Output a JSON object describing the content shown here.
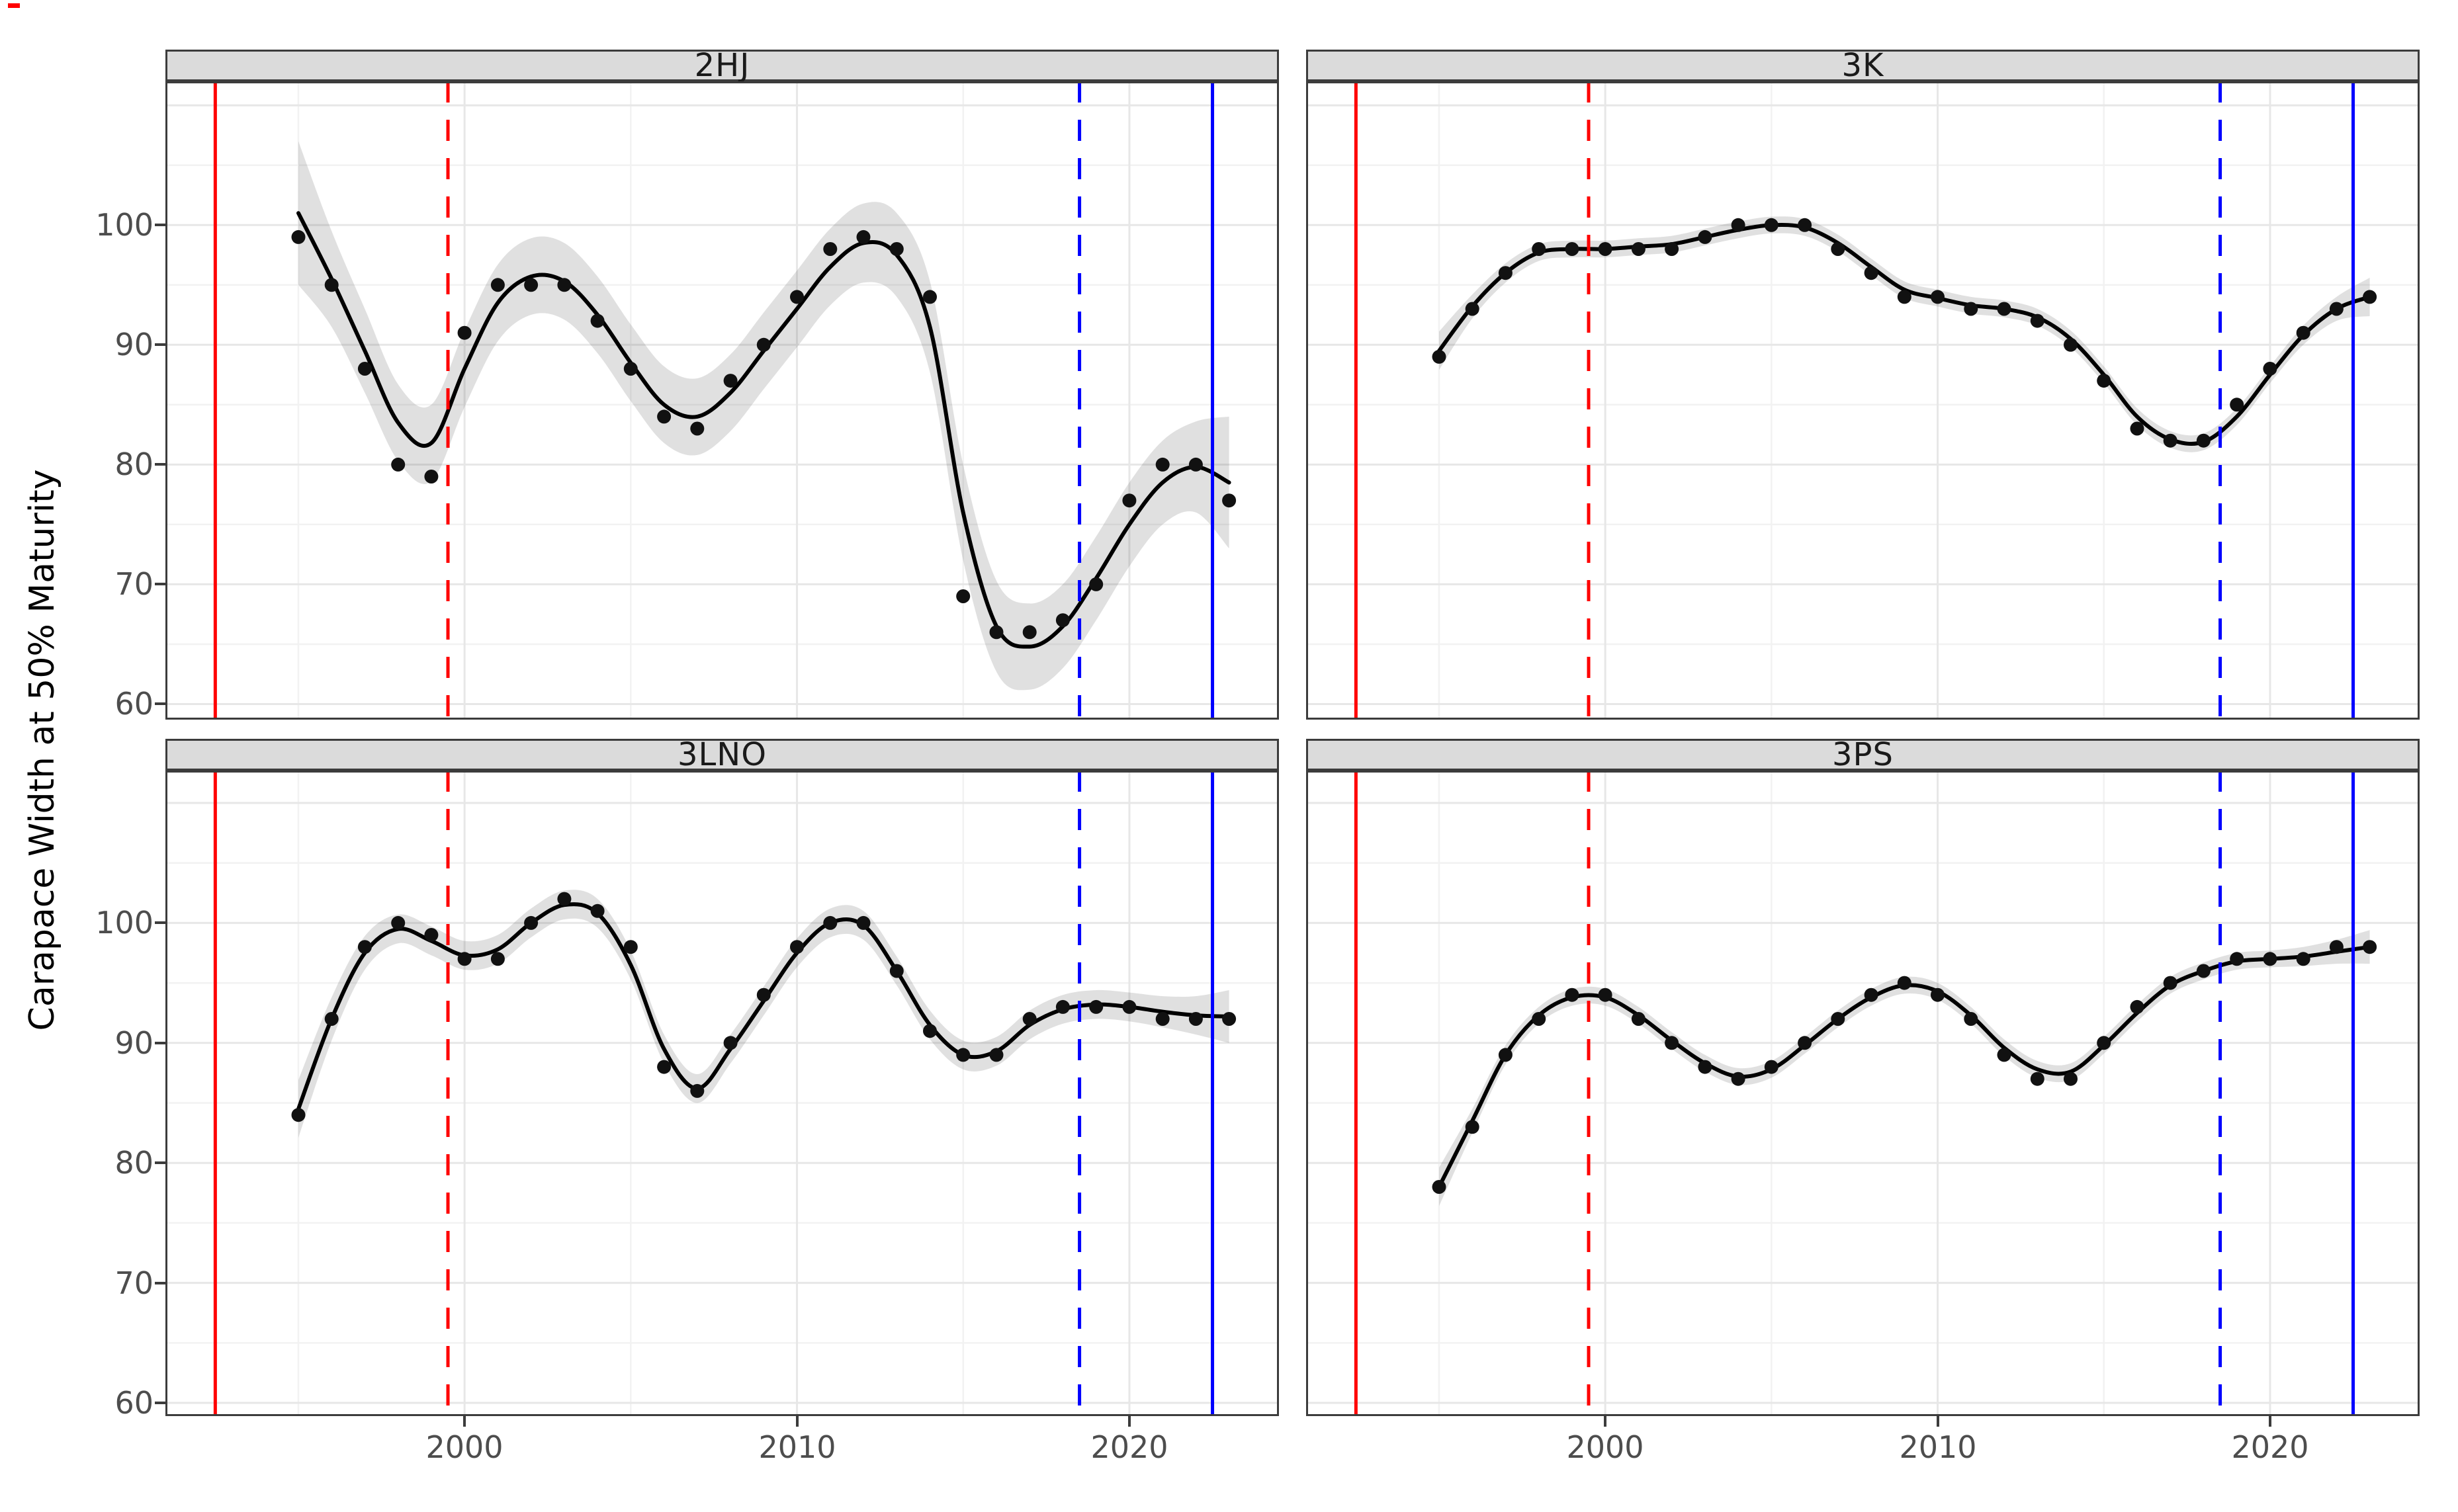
{
  "y_axis": {
    "title": "Carapace Width at 50% Maturity",
    "tick_labels": [
      "100",
      "90",
      "80",
      "70",
      "60"
    ],
    "tick_values": [
      100,
      90,
      80,
      70,
      60
    ]
  },
  "x_axis": {
    "tick_labels": [
      "2000",
      "2010",
      "2020"
    ],
    "tick_values": [
      2000,
      2010,
      2020
    ]
  },
  "reference_lines": [
    {
      "name": "red-solid-line",
      "x": 1992.5,
      "color": "#ff0000",
      "style": "solid"
    },
    {
      "name": "red-dashed-line",
      "x": 1999.5,
      "color": "#ff0000",
      "style": "dashed"
    },
    {
      "name": "blue-dashed-line",
      "x": 2018.5,
      "color": "#0000ff",
      "style": "dashed"
    },
    {
      "name": "blue-solid-line",
      "x": 2022.5,
      "color": "#0000ff",
      "style": "solid"
    }
  ],
  "style": {
    "point_color": "#111111",
    "line_color": "#000000",
    "ribbon_color": "rgba(60,60,60,0.16)",
    "grid_major_color": "#e7e7e7",
    "grid_minor_color": "#f2f2f2",
    "panel_border_color": "#3c3c3c",
    "strip_background": "#dbdbdb",
    "tick_text_color": "#4d4d4d"
  },
  "chart_data": {
    "type": "scatter",
    "title": "",
    "xlabel": "",
    "ylabel": "Carapace Width at 50% Maturity",
    "xlim": [
      1991,
      2024.5
    ],
    "ylim_row_top": [
      58.7,
      112.0
    ],
    "ylim_row_bottom": [
      58.9,
      112.7
    ],
    "grid": "on",
    "legend": "none",
    "x": [
      1995,
      1996,
      1997,
      1998,
      1999,
      2000,
      2001,
      2002,
      2003,
      2004,
      2005,
      2006,
      2007,
      2008,
      2009,
      2010,
      2011,
      2012,
      2013,
      2014,
      2015,
      2016,
      2017,
      2018,
      2019,
      2020,
      2021,
      2022,
      2023
    ],
    "panels": [
      {
        "label": "2HJ",
        "values": [
          99,
          95,
          88,
          80,
          79,
          91,
          95,
          95,
          95,
          92,
          88,
          84,
          83,
          87,
          90,
          94,
          98,
          99,
          98,
          94,
          69,
          66,
          66,
          67,
          70,
          77,
          80,
          80,
          77
        ],
        "smooth": [
          101,
          95.5,
          89.5,
          83.5,
          81.8,
          88,
          93.5,
          95.7,
          95.3,
          92.5,
          88.5,
          85,
          84,
          86,
          89.5,
          93,
          96.5,
          98.5,
          97.5,
          91.5,
          76,
          66.5,
          64.8,
          66.5,
          70.5,
          75,
          78.5,
          79.8,
          78.5
        ],
        "ci_halfwidth": [
          6,
          4,
          3.5,
          3.2,
          3.2,
          3.2,
          3.2,
          3.2,
          3.2,
          3.2,
          3.2,
          3.2,
          3.2,
          3.2,
          3.2,
          3.2,
          3.2,
          3.3,
          3.5,
          3.8,
          4,
          3.8,
          3.6,
          3.5,
          3.5,
          3.5,
          3.5,
          3.8,
          5.5
        ]
      },
      {
        "label": "3K",
        "values": [
          89,
          93,
          96,
          98,
          98,
          98,
          98,
          98,
          99,
          100,
          100,
          100,
          98,
          96,
          94,
          94,
          93,
          93,
          92,
          90,
          87,
          83,
          82,
          82,
          85,
          88,
          91,
          93,
          94
        ],
        "smooth": [
          89.5,
          93.2,
          96,
          97.7,
          98,
          98,
          98.2,
          98.4,
          99,
          99.6,
          100,
          99.8,
          98.5,
          96.5,
          94.6,
          93.9,
          93.3,
          93,
          92.3,
          90.5,
          87.5,
          84,
          82.1,
          81.9,
          84,
          87.5,
          90.8,
          93,
          94
        ],
        "ci_halfwidth": [
          1.6,
          1,
          0.8,
          0.7,
          0.7,
          0.7,
          0.7,
          0.7,
          0.7,
          0.7,
          0.7,
          0.7,
          0.7,
          0.7,
          0.7,
          0.7,
          0.7,
          0.7,
          0.7,
          0.7,
          0.7,
          0.7,
          0.7,
          0.7,
          0.7,
          0.7,
          0.8,
          1,
          1.6
        ]
      },
      {
        "label": "3LNO",
        "values": [
          84,
          92,
          98,
          100,
          99,
          97,
          97,
          100,
          102,
          101,
          98,
          88,
          86,
          90,
          94,
          98,
          100,
          100,
          96,
          91,
          89,
          89,
          92,
          93,
          93,
          93,
          92,
          92,
          92
        ],
        "smooth": [
          84.5,
          92,
          97.5,
          99.5,
          98.5,
          97.3,
          97.8,
          100,
          101.5,
          100.8,
          96.5,
          89.5,
          86.2,
          89.5,
          93.5,
          97.5,
          100,
          99.8,
          96,
          91.5,
          89,
          89.3,
          91.5,
          92.8,
          93.2,
          93,
          92.6,
          92.3,
          92.2
        ],
        "ci_halfwidth": [
          2.4,
          1.8,
          1.4,
          1.2,
          1.2,
          1.2,
          1.2,
          1.2,
          1.2,
          1.2,
          1.2,
          1.2,
          1.2,
          1.2,
          1.2,
          1.2,
          1.2,
          1.2,
          1.2,
          1.2,
          1.2,
          1.2,
          1.2,
          1.2,
          1.2,
          1.2,
          1.3,
          1.6,
          2.2
        ]
      },
      {
        "label": "3PS",
        "values": [
          78,
          83,
          89,
          92,
          94,
          94,
          92,
          90,
          88,
          87,
          88,
          90,
          92,
          94,
          95,
          94,
          92,
          89,
          87,
          87,
          90,
          93,
          95,
          96,
          97,
          97,
          97,
          98,
          98
        ],
        "smooth": [
          78,
          83.5,
          89,
          92.3,
          93.8,
          93.8,
          92.3,
          90.2,
          88.3,
          87.2,
          87.8,
          89.8,
          92,
          93.8,
          94.8,
          94.3,
          92.3,
          89.6,
          87.8,
          87.6,
          89.8,
          92.5,
          94.8,
          96,
          96.8,
          97,
          97.2,
          97.6,
          98
        ],
        "ci_halfwidth": [
          1.6,
          1,
          0.8,
          0.7,
          0.7,
          0.7,
          0.7,
          0.7,
          0.7,
          0.7,
          0.7,
          0.7,
          0.7,
          0.7,
          0.7,
          0.7,
          0.7,
          0.7,
          0.7,
          0.7,
          0.7,
          0.7,
          0.7,
          0.7,
          0.7,
          0.7,
          0.8,
          1,
          1.4
        ]
      }
    ]
  }
}
